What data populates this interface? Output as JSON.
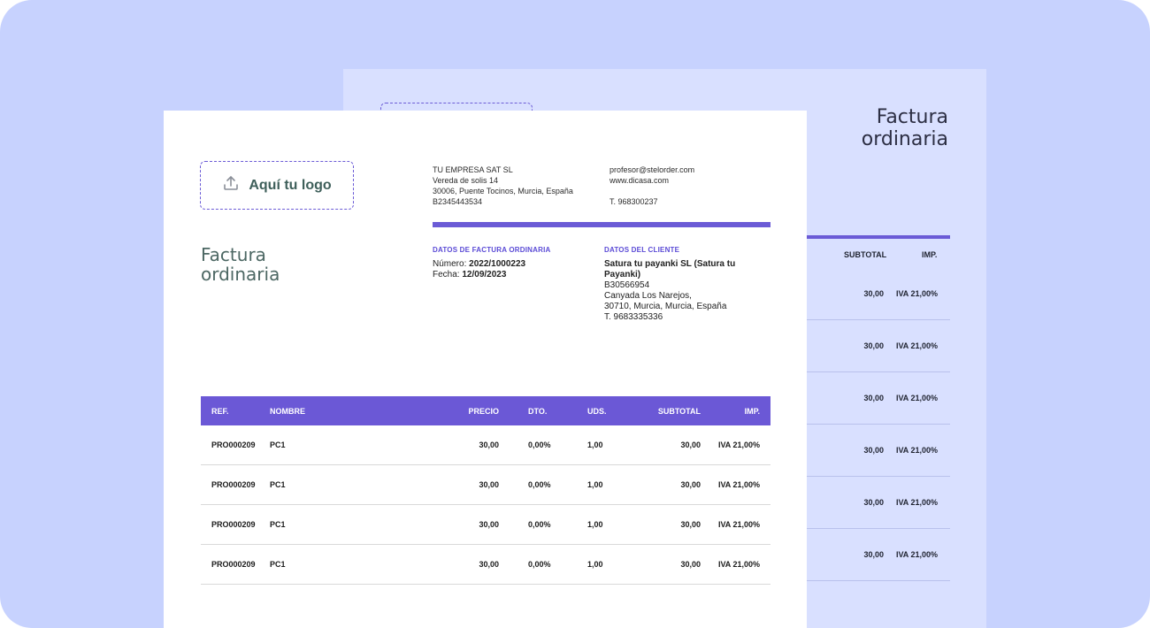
{
  "back_sheet": {
    "title": "Factura\nordinaria",
    "columns": {
      "subtotal": "SUBTOTAL",
      "imp": "IMP."
    },
    "rows": [
      {
        "subtotal": "30,00",
        "imp": "IVA 21,00%"
      },
      {
        "subtotal": "30,00",
        "imp": "IVA 21,00%"
      },
      {
        "subtotal": "30,00",
        "imp": "IVA 21,00%"
      },
      {
        "subtotal": "30,00",
        "imp": "IVA 21,00%"
      },
      {
        "subtotal": "30,00",
        "imp": "IVA 21,00%"
      },
      {
        "subtotal": "30,00",
        "imp": "IVA 21,00%"
      }
    ]
  },
  "front_sheet": {
    "logo_placeholder": "Aquí tu logo",
    "upload_icon": "upload-icon",
    "company": {
      "name": "TU EMPRESA SAT SL",
      "street": "Vereda de solis 14",
      "city": "30006, Puente Tocinos, Murcia, España",
      "tax_id": "B2345443534"
    },
    "contact": {
      "email": "profesor@stelorder.com",
      "web": "www.dicasa.com",
      "phone": "T. 968300237"
    },
    "title": "Factura\nordinaria",
    "invoice_section": {
      "label": "DATOS DE FACTURA ORDINARIA",
      "number_label": "Número:",
      "number": "2022/1000223",
      "date_label": "Fecha:",
      "date": "12/09/2023"
    },
    "client_section": {
      "label": "DATOS DEL CLIENTE",
      "name": "Satura tu payanki SL (Satura tu Payanki)",
      "tax_id": "B30566954",
      "street": "Canyada Los Narejos,",
      "city": "30710, Murcia, Murcia, España",
      "phone": "T. 9683335336"
    },
    "table": {
      "columns": {
        "ref": "REF.",
        "nombre": "NOMBRE",
        "precio": "PRECIO",
        "dto": "DTO.",
        "uds": "UDS.",
        "subtotal": "SUBTOTAL",
        "imp": "IMP."
      },
      "rows": [
        {
          "ref": "PRO000209",
          "nombre": "PC1",
          "precio": "30,00",
          "dto": "0,00%",
          "uds": "1,00",
          "subtotal": "30,00",
          "imp": "IVA 21,00%"
        },
        {
          "ref": "PRO000209",
          "nombre": "PC1",
          "precio": "30,00",
          "dto": "0,00%",
          "uds": "1,00",
          "subtotal": "30,00",
          "imp": "IVA 21,00%"
        },
        {
          "ref": "PRO000209",
          "nombre": "PC1",
          "precio": "30,00",
          "dto": "0,00%",
          "uds": "1,00",
          "subtotal": "30,00",
          "imp": "IVA 21,00%"
        },
        {
          "ref": "PRO000209",
          "nombre": "PC1",
          "precio": "30,00",
          "dto": "0,00%",
          "uds": "1,00",
          "subtotal": "30,00",
          "imp": "IVA 21,00%"
        }
      ]
    }
  },
  "colors": {
    "background": "#c7d2fe",
    "accent": "#6b58d6",
    "back_sheet": "#d9e0ff",
    "title_text": "#4c6763"
  }
}
